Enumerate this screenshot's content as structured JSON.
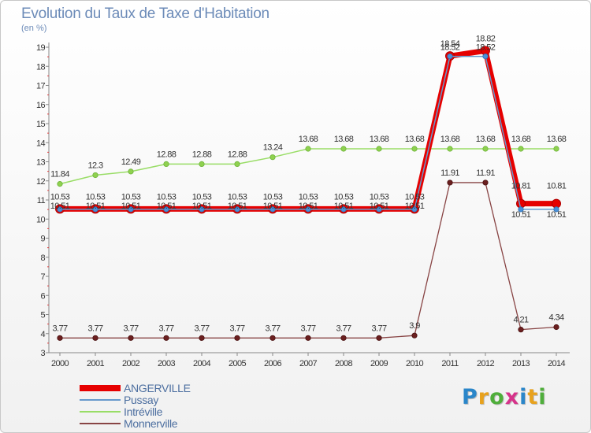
{
  "header": {
    "title": "Evolution du Taux de Taxe d'Habitation",
    "subtitle": "(en %)"
  },
  "logo": {
    "text": "Proxiti",
    "letter_colors": [
      "#2a86c9",
      "#e8a21d",
      "#4fae3b",
      "#d6338a",
      "#2a86c9",
      "#e8a21d",
      "#4fae3b"
    ]
  },
  "chart_data": {
    "type": "line",
    "title": "Evolution du Taux de Taxe d'Habitation",
    "ylabel": "(en %)",
    "xlabel": "",
    "x": [
      2000,
      2001,
      2002,
      2003,
      2004,
      2005,
      2006,
      2007,
      2008,
      2009,
      2010,
      2011,
      2012,
      2013,
      2014
    ],
    "ylim": [
      3,
      19
    ],
    "yticks": [
      3,
      4,
      5,
      6,
      7,
      8,
      9,
      10,
      11,
      12,
      13,
      14,
      15,
      16,
      17,
      18,
      19
    ],
    "grid": false,
    "legend_position": "bottom-left",
    "series": [
      {
        "name": "ANGERVILLE",
        "color": "#e60000",
        "values": [
          10.53,
          10.53,
          10.53,
          10.53,
          10.53,
          10.53,
          10.53,
          10.53,
          10.53,
          10.53,
          10.53,
          18.54,
          18.82,
          10.81,
          10.81
        ],
        "labels": [
          "10.53",
          "10.53",
          "10.53",
          "10.53",
          "10.53",
          "10.53",
          "10.53",
          "10.53",
          "10.53",
          "10.53",
          "10.53",
          "18.54",
          "18.82",
          "10.81",
          "10.81"
        ]
      },
      {
        "name": "Pussay",
        "color": "#6699cc",
        "values": [
          10.51,
          10.51,
          10.51,
          10.51,
          10.51,
          10.51,
          10.51,
          10.51,
          10.51,
          10.51,
          10.51,
          18.52,
          18.52,
          10.51,
          10.51
        ],
        "labels": [
          "10.51",
          "10.51",
          "10.51",
          "10.51",
          "10.51",
          "10.51",
          "10.51",
          "10.51",
          "10.51",
          "10.51",
          "10.51",
          "18.52",
          "18.52",
          "10.51",
          "10.51"
        ]
      },
      {
        "name": "Intréville",
        "color": "#99dd66",
        "values": [
          11.84,
          12.3,
          12.49,
          12.88,
          12.88,
          12.88,
          13.24,
          13.68,
          13.68,
          13.68,
          13.68,
          13.68,
          13.68,
          13.68,
          13.68
        ],
        "labels": [
          "11.84",
          "12.3",
          "12.49",
          "12.88",
          "12.88",
          "12.88",
          "13.24",
          "13.68",
          "13.68",
          "13.68",
          "13.68",
          "13.68",
          "13.68",
          "13.68",
          "13.68"
        ]
      },
      {
        "name": "Monnerville",
        "color": "#884444",
        "values": [
          3.77,
          3.77,
          3.77,
          3.77,
          3.77,
          3.77,
          3.77,
          3.77,
          3.77,
          3.77,
          3.9,
          11.91,
          11.91,
          4.21,
          4.34
        ],
        "labels": [
          "3.77",
          "3.77",
          "3.77",
          "3.77",
          "3.77",
          "3.77",
          "3.77",
          "3.77",
          "3.77",
          "3.77",
          "3.9",
          "11.91",
          "11.91",
          "4.21",
          "4.34"
        ]
      }
    ]
  }
}
